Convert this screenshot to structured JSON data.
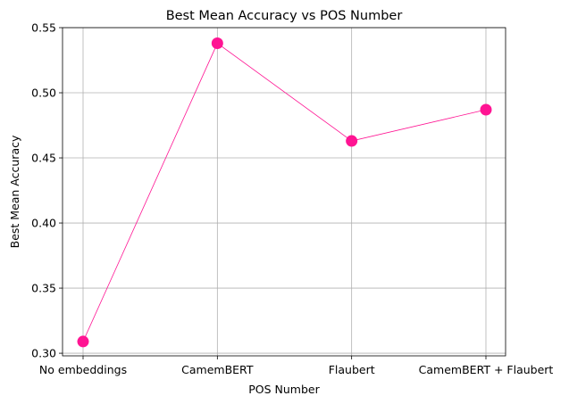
{
  "chart_data": {
    "type": "line",
    "title": "Best Mean Accuracy vs POS Number",
    "xlabel": "POS Number",
    "ylabel": "Best Mean Accuracy",
    "categories": [
      "No embeddings",
      "CamemBERT",
      "Flaubert",
      "CamemBERT + Flaubert"
    ],
    "series": [
      {
        "values": [
          0.309,
          0.538,
          0.463,
          0.487
        ],
        "color": "#ff1493",
        "marker": "circle"
      }
    ],
    "ylim": [
      0.298,
      0.55
    ],
    "yticks": [
      0.3,
      0.35,
      0.4,
      0.45,
      0.5,
      0.55
    ],
    "ytick_labels": [
      "0.30",
      "0.35",
      "0.40",
      "0.45",
      "0.50",
      "0.55"
    ],
    "grid": true,
    "legend": false
  }
}
